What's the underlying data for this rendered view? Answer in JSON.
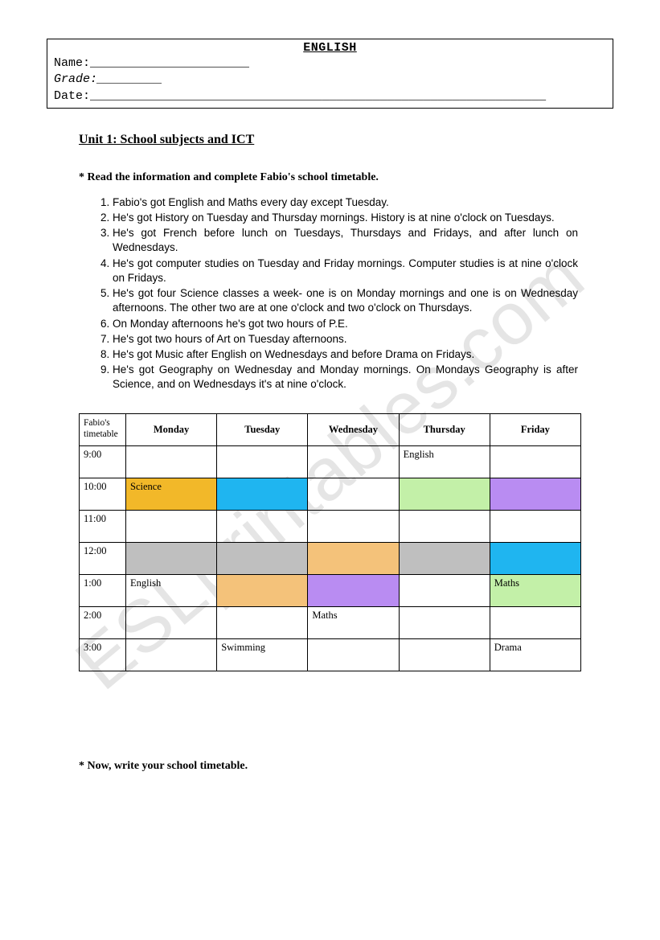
{
  "watermark": "ESLprintables.com",
  "header": {
    "title": "ENGLISH",
    "name_label": "Name:",
    "name_blank": "______________________",
    "grade_label": "Grade:",
    "grade_blank": "_________",
    "date_label": "Date:",
    "date_blank": "_______________________________________________________________"
  },
  "unit_title": "Unit 1: School subjects and ICT",
  "instruction1": "* Read the information and complete Fabio's school timetable.",
  "clues": [
    "Fabio's got English and Maths every day except Tuesday.",
    "He's got History on Tuesday and Thursday mornings. History is at nine o'clock on Tuesdays.",
    "He's got French before lunch on Tuesdays, Thursdays and Fridays, and after lunch on Wednesdays.",
    "He's got computer studies on Tuesday and Friday mornings. Computer studies is at nine o'clock on Fridays.",
    "He's got four Science classes a week- one is on Monday mornings and one is on Wednesday afternoons. The other two are at one o'clock and two o'clock on Thursdays.",
    "On Monday afternoons he's got two hours of P.E.",
    "He's got two hours of Art on Tuesday afternoons.",
    "He's got Music after English on Wednesdays and before Drama on Fridays.",
    "He's got Geography on Wednesday and Monday mornings. On Mondays Geography is after Science, and on Wednesdays it's at nine o'clock."
  ],
  "timetable": {
    "corner": "Fabio's timetable",
    "days": [
      "Monday",
      "Tuesday",
      "Wednesday",
      "Thursday",
      "Friday"
    ],
    "times": [
      "9:00",
      "10:00",
      "11:00",
      "12:00",
      "1:00",
      "2:00",
      "3:00"
    ],
    "cells": {
      "9:00": [
        {
          "text": "",
          "bg": ""
        },
        {
          "text": "",
          "bg": ""
        },
        {
          "text": "",
          "bg": ""
        },
        {
          "text": "English",
          "bg": ""
        },
        {
          "text": "",
          "bg": ""
        }
      ],
      "10:00": [
        {
          "text": "Science",
          "bg": "#f2b829"
        },
        {
          "text": "",
          "bg": "#1fb5f0"
        },
        {
          "text": "",
          "bg": ""
        },
        {
          "text": "",
          "bg": "#c3f0a8"
        },
        {
          "text": "",
          "bg": "#b98cf2"
        }
      ],
      "11:00": [
        {
          "text": "",
          "bg": ""
        },
        {
          "text": "",
          "bg": ""
        },
        {
          "text": "",
          "bg": ""
        },
        {
          "text": "",
          "bg": ""
        },
        {
          "text": "",
          "bg": ""
        }
      ],
      "12:00": [
        {
          "text": "",
          "bg": "#bfbfbf"
        },
        {
          "text": "",
          "bg": "#bfbfbf"
        },
        {
          "text": "",
          "bg": "#f4c27a"
        },
        {
          "text": "",
          "bg": "#bfbfbf"
        },
        {
          "text": "",
          "bg": "#1fb5f0"
        }
      ],
      "1:00": [
        {
          "text": "English",
          "bg": ""
        },
        {
          "text": "",
          "bg": "#f4c27a"
        },
        {
          "text": "",
          "bg": "#b98cf2"
        },
        {
          "text": "",
          "bg": ""
        },
        {
          "text": "Maths",
          "bg": "#c3f0a8"
        }
      ],
      "2:00": [
        {
          "text": "",
          "bg": ""
        },
        {
          "text": "",
          "bg": ""
        },
        {
          "text": "Maths",
          "bg": ""
        },
        {
          "text": "",
          "bg": ""
        },
        {
          "text": "",
          "bg": ""
        }
      ],
      "3:00": [
        {
          "text": "",
          "bg": ""
        },
        {
          "text": "Swimming",
          "bg": ""
        },
        {
          "text": "",
          "bg": ""
        },
        {
          "text": "",
          "bg": ""
        },
        {
          "text": "Drama",
          "bg": ""
        }
      ]
    }
  },
  "instruction2": "* Now, write your school timetable.",
  "colors": {
    "orange": "#f2b829",
    "cyan": "#1fb5f0",
    "green": "#c3f0a8",
    "purple": "#b98cf2",
    "grey": "#bfbfbf",
    "peach": "#f4c27a",
    "white": "#ffffff",
    "black": "#000000"
  }
}
